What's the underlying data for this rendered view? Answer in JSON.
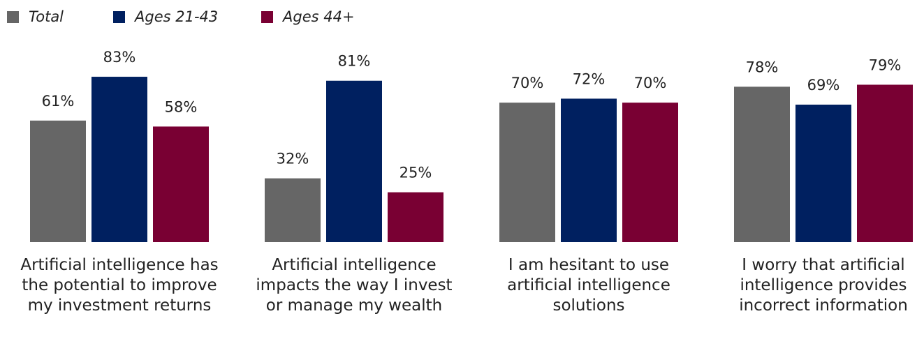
{
  "chart_data": {
    "type": "bar",
    "categories": [
      "Artificial intelligence has the potential to improve my investment returns",
      "Artificial intelligence impacts the way I invest or manage my wealth",
      "I am hesitant to use artificial intelligence solutions",
      "I worry that artificial intelligence provides incorrect information"
    ],
    "series": [
      {
        "name": "Total",
        "color": "#666666",
        "values": [
          61,
          32,
          70,
          78
        ],
        "value_labels": [
          "61%",
          "32%",
          "70%",
          "78%"
        ]
      },
      {
        "name": "Ages 21-43",
        "color": "#002060",
        "values": [
          83,
          81,
          72,
          69
        ],
        "value_labels": [
          "83%",
          "81%",
          "72%",
          "69%"
        ]
      },
      {
        "name": "Ages 44+",
        "color": "#790033",
        "values": [
          58,
          25,
          70,
          79
        ],
        "value_labels": [
          "58%",
          "25%",
          "70%",
          "79%"
        ]
      }
    ],
    "ylim": [
      0,
      100
    ],
    "legend": "top-left"
  }
}
